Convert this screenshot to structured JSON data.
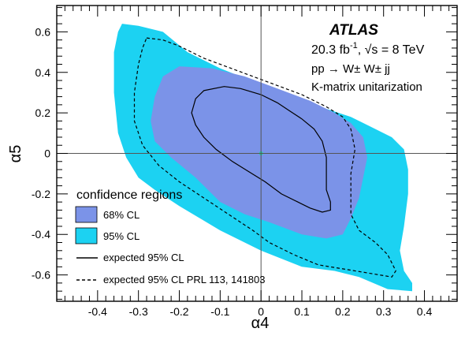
{
  "chart_data": {
    "type": "area",
    "xlabel": "α4",
    "ylabel": "α5",
    "xlim": [
      -0.5,
      0.48
    ],
    "ylim": [
      -0.73,
      0.73
    ],
    "x_ticks": [
      -0.4,
      -0.3,
      -0.2,
      -0.1,
      0,
      0.1,
      0.2,
      0.3,
      0.4
    ],
    "x_tick_labels": [
      "-0.4",
      "-0.3",
      "-0.2",
      "-0.1",
      "0",
      "0.1",
      "0.2",
      "0.3",
      "0.4"
    ],
    "y_ticks": [
      -0.6,
      -0.4,
      -0.2,
      0,
      0.2,
      0.4,
      0.6
    ],
    "y_tick_labels": [
      "-0.6",
      "-0.4",
      "-0.2",
      "0",
      "0.2",
      "0.4",
      "0.6"
    ],
    "annotations": {
      "experiment": "ATLAS",
      "lumi": "20.3 fb",
      "lumi_sup": "-1",
      "energy": ", √s = 8 TeV",
      "process": "pp → W± W± jj",
      "method": "K-matrix unitarization"
    },
    "legend": {
      "title": "confidence regions",
      "placement": "bottom-left",
      "entries": [
        "68% CL",
        "95% CL",
        "expected 95% CL",
        "expected 95% CL PRL 113, 141803"
      ]
    },
    "colors": {
      "cl68": "#7b93e8",
      "cl95": "#1cd2f2",
      "line": "#000000"
    },
    "series": [
      {
        "name": "95% CL",
        "style": "fill",
        "points": [
          [
            -0.34,
            0.64
          ],
          [
            -0.3,
            0.63
          ],
          [
            -0.24,
            0.6
          ],
          [
            -0.18,
            0.5
          ],
          [
            -0.1,
            0.42
          ],
          [
            0.0,
            0.34
          ],
          [
            0.08,
            0.28
          ],
          [
            0.16,
            0.22
          ],
          [
            0.22,
            0.18
          ],
          [
            0.26,
            0.14
          ],
          [
            0.32,
            0.08
          ],
          [
            0.35,
            0.02
          ],
          [
            0.36,
            -0.08
          ],
          [
            0.36,
            -0.2
          ],
          [
            0.35,
            -0.36
          ],
          [
            0.34,
            -0.48
          ],
          [
            0.35,
            -0.58
          ],
          [
            0.37,
            -0.64
          ],
          [
            0.37,
            -0.68
          ],
          [
            0.31,
            -0.67
          ],
          [
            0.24,
            -0.61
          ],
          [
            0.18,
            -0.58
          ],
          [
            0.1,
            -0.56
          ],
          [
            0.0,
            -0.48
          ],
          [
            -0.1,
            -0.38
          ],
          [
            -0.2,
            -0.26
          ],
          [
            -0.26,
            -0.18
          ],
          [
            -0.3,
            -0.12
          ],
          [
            -0.33,
            -0.02
          ],
          [
            -0.35,
            0.1
          ],
          [
            -0.36,
            0.3
          ],
          [
            -0.36,
            0.5
          ],
          [
            -0.35,
            0.6
          ]
        ]
      },
      {
        "name": "68% CL",
        "style": "fill",
        "points": [
          [
            -0.2,
            0.43
          ],
          [
            -0.12,
            0.42
          ],
          [
            -0.04,
            0.38
          ],
          [
            0.04,
            0.32
          ],
          [
            0.12,
            0.26
          ],
          [
            0.18,
            0.2
          ],
          [
            0.22,
            0.15
          ],
          [
            0.25,
            0.08
          ],
          [
            0.26,
            -0.02
          ],
          [
            0.25,
            -0.12
          ],
          [
            0.24,
            -0.22
          ],
          [
            0.22,
            -0.32
          ],
          [
            0.2,
            -0.4
          ],
          [
            0.16,
            -0.42
          ],
          [
            0.1,
            -0.4
          ],
          [
            0.02,
            -0.34
          ],
          [
            -0.04,
            -0.3
          ],
          [
            -0.1,
            -0.24
          ],
          [
            -0.16,
            -0.12
          ],
          [
            -0.22,
            -0.02
          ],
          [
            -0.26,
            0.06
          ],
          [
            -0.27,
            0.16
          ],
          [
            -0.26,
            0.28
          ],
          [
            -0.24,
            0.38
          ]
        ]
      },
      {
        "name": "expected 95% CL",
        "style": "solid",
        "points": [
          [
            -0.14,
            0.31
          ],
          [
            -0.09,
            0.33
          ],
          [
            -0.05,
            0.32
          ],
          [
            0.0,
            0.29
          ],
          [
            0.04,
            0.25
          ],
          [
            0.07,
            0.21
          ],
          [
            0.1,
            0.17
          ],
          [
            0.13,
            0.12
          ],
          [
            0.15,
            0.06
          ],
          [
            0.16,
            -0.02
          ],
          [
            0.16,
            -0.1
          ],
          [
            0.16,
            -0.18
          ],
          [
            0.17,
            -0.24
          ],
          [
            0.17,
            -0.28
          ],
          [
            0.15,
            -0.29
          ],
          [
            0.12,
            -0.27
          ],
          [
            0.09,
            -0.24
          ],
          [
            0.05,
            -0.2
          ],
          [
            0.01,
            -0.14
          ],
          [
            -0.03,
            -0.09
          ],
          [
            -0.07,
            -0.04
          ],
          [
            -0.11,
            0.02
          ],
          [
            -0.14,
            0.08
          ],
          [
            -0.16,
            0.14
          ],
          [
            -0.17,
            0.2
          ],
          [
            -0.16,
            0.27
          ]
        ]
      },
      {
        "name": "expected 95% CL PRL 113, 141803",
        "style": "dashed",
        "points": [
          [
            -0.28,
            0.57
          ],
          [
            -0.24,
            0.56
          ],
          [
            -0.2,
            0.53
          ],
          [
            -0.14,
            0.47
          ],
          [
            -0.06,
            0.41
          ],
          [
            0.02,
            0.35
          ],
          [
            0.1,
            0.29
          ],
          [
            0.16,
            0.23
          ],
          [
            0.2,
            0.18
          ],
          [
            0.22,
            0.12
          ],
          [
            0.23,
            0.02
          ],
          [
            0.22,
            -0.1
          ],
          [
            0.22,
            -0.2
          ],
          [
            0.22,
            -0.3
          ],
          [
            0.24,
            -0.38
          ],
          [
            0.28,
            -0.44
          ],
          [
            0.31,
            -0.5
          ],
          [
            0.33,
            -0.58
          ],
          [
            0.32,
            -0.61
          ],
          [
            0.26,
            -0.59
          ],
          [
            0.2,
            -0.57
          ],
          [
            0.14,
            -0.55
          ],
          [
            0.08,
            -0.5
          ],
          [
            0.02,
            -0.44
          ],
          [
            -0.02,
            -0.38
          ],
          [
            -0.08,
            -0.3
          ],
          [
            -0.14,
            -0.22
          ],
          [
            -0.2,
            -0.14
          ],
          [
            -0.25,
            -0.06
          ],
          [
            -0.29,
            0.04
          ],
          [
            -0.31,
            0.16
          ],
          [
            -0.31,
            0.3
          ],
          [
            -0.3,
            0.44
          ],
          [
            -0.29,
            0.52
          ]
        ]
      }
    ],
    "best_fit": [
      0,
      0
    ]
  }
}
